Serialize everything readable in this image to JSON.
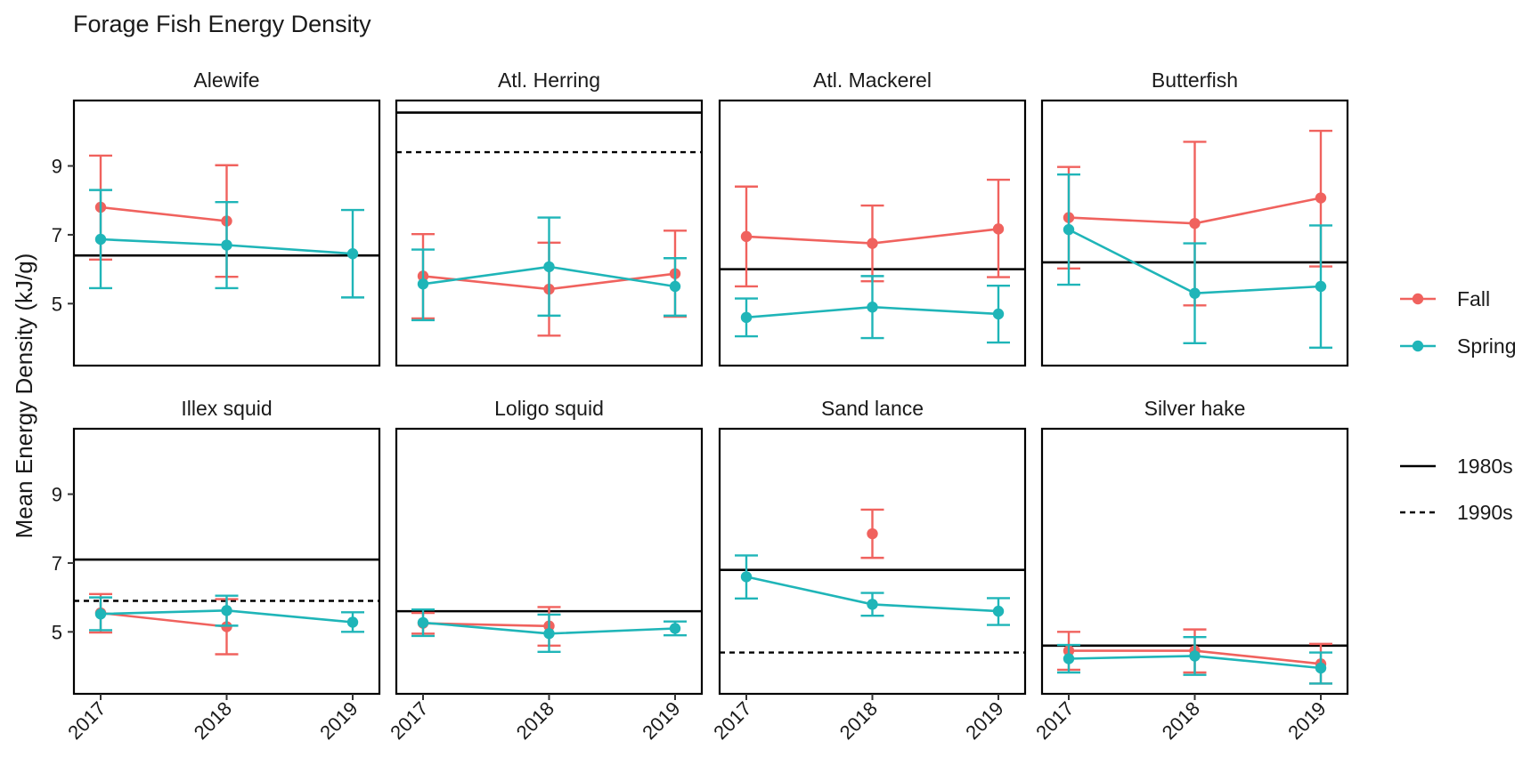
{
  "chart_data": {
    "type": "line",
    "title": "Forage Fish Energy Density",
    "xlabel": "",
    "ylabel": "Mean Energy Density (kJ/g)",
    "x": [
      "2017",
      "2018",
      "2019"
    ],
    "y_ticks": [
      5,
      7,
      9
    ],
    "ylim": [
      3.2,
      10.9
    ],
    "grid": false,
    "legend_position": "right",
    "series_legend": [
      {
        "name": "Fall",
        "color": "#F0625E"
      },
      {
        "name": "Spring",
        "color": "#1FB5B8"
      }
    ],
    "reference_legend": [
      {
        "name": "1980s",
        "style": "solid"
      },
      {
        "name": "1990s",
        "style": "dashed"
      }
    ],
    "panels": [
      {
        "name": "Alewife",
        "ref_1980s": 6.4,
        "ref_1990s": null,
        "series": [
          {
            "name": "Fall",
            "points": [
              {
                "x": "2017",
                "y": 7.8,
                "lo": 6.28,
                "hi": 9.3
              },
              {
                "x": "2018",
                "y": 7.4,
                "lo": 5.78,
                "hi": 9.02
              }
            ]
          },
          {
            "name": "Spring",
            "points": [
              {
                "x": "2017",
                "y": 6.87,
                "lo": 5.45,
                "hi": 8.3
              },
              {
                "x": "2018",
                "y": 6.7,
                "lo": 5.45,
                "hi": 7.95
              },
              {
                "x": "2019",
                "y": 6.45,
                "lo": 5.18,
                "hi": 7.72
              }
            ]
          }
        ]
      },
      {
        "name": "Atl. Herring",
        "ref_1980s": 10.55,
        "ref_1990s": 9.4,
        "series": [
          {
            "name": "Fall",
            "points": [
              {
                "x": "2017",
                "y": 5.8,
                "lo": 4.57,
                "hi": 7.02
              },
              {
                "x": "2018",
                "y": 5.42,
                "lo": 4.07,
                "hi": 6.77
              },
              {
                "x": "2019",
                "y": 5.87,
                "lo": 4.62,
                "hi": 7.12
              }
            ]
          },
          {
            "name": "Spring",
            "points": [
              {
                "x": "2017",
                "y": 5.57,
                "lo": 4.52,
                "hi": 6.57
              },
              {
                "x": "2018",
                "y": 6.07,
                "lo": 4.65,
                "hi": 7.5
              },
              {
                "x": "2019",
                "y": 5.5,
                "lo": 4.65,
                "hi": 6.32
              }
            ]
          }
        ]
      },
      {
        "name": "Atl. Mackerel",
        "ref_1980s": 6.0,
        "ref_1990s": null,
        "series": [
          {
            "name": "Fall",
            "points": [
              {
                "x": "2017",
                "y": 6.95,
                "lo": 5.5,
                "hi": 8.4
              },
              {
                "x": "2018",
                "y": 6.75,
                "lo": 5.65,
                "hi": 7.85
              },
              {
                "x": "2019",
                "y": 7.17,
                "lo": 5.77,
                "hi": 8.6
              }
            ]
          },
          {
            "name": "Spring",
            "points": [
              {
                "x": "2017",
                "y": 4.6,
                "lo": 4.05,
                "hi": 5.15
              },
              {
                "x": "2018",
                "y": 4.9,
                "lo": 4.0,
                "hi": 5.8
              },
              {
                "x": "2019",
                "y": 4.7,
                "lo": 3.87,
                "hi": 5.52
              }
            ]
          }
        ]
      },
      {
        "name": "Butterfish",
        "ref_1980s": 6.2,
        "ref_1990s": null,
        "series": [
          {
            "name": "Fall",
            "points": [
              {
                "x": "2017",
                "y": 7.5,
                "lo": 6.02,
                "hi": 8.97
              },
              {
                "x": "2018",
                "y": 7.33,
                "lo": 4.95,
                "hi": 9.7
              },
              {
                "x": "2019",
                "y": 8.07,
                "lo": 6.08,
                "hi": 10.02
              }
            ]
          },
          {
            "name": "Spring",
            "points": [
              {
                "x": "2017",
                "y": 7.15,
                "lo": 5.55,
                "hi": 8.75
              },
              {
                "x": "2018",
                "y": 5.3,
                "lo": 3.85,
                "hi": 6.75
              },
              {
                "x": "2019",
                "y": 5.5,
                "lo": 3.72,
                "hi": 7.27
              }
            ]
          }
        ]
      },
      {
        "name": "Illex squid",
        "ref_1980s": 7.1,
        "ref_1990s": 5.9,
        "series": [
          {
            "name": "Fall",
            "points": [
              {
                "x": "2017",
                "y": 5.55,
                "lo": 4.98,
                "hi": 6.1
              },
              {
                "x": "2018",
                "y": 5.15,
                "lo": 4.35,
                "hi": 5.95
              }
            ]
          },
          {
            "name": "Spring",
            "points": [
              {
                "x": "2017",
                "y": 5.52,
                "lo": 5.05,
                "hi": 6.0
              },
              {
                "x": "2018",
                "y": 5.62,
                "lo": 5.18,
                "hi": 6.05
              },
              {
                "x": "2019",
                "y": 5.28,
                "lo": 5.0,
                "hi": 5.57
              }
            ]
          }
        ]
      },
      {
        "name": "Loligo squid",
        "ref_1980s": 5.6,
        "ref_1990s": null,
        "series": [
          {
            "name": "Fall",
            "points": [
              {
                "x": "2017",
                "y": 5.25,
                "lo": 4.95,
                "hi": 5.55
              },
              {
                "x": "2018",
                "y": 5.17,
                "lo": 4.6,
                "hi": 5.72
              }
            ]
          },
          {
            "name": "Spring",
            "points": [
              {
                "x": "2017",
                "y": 5.27,
                "lo": 4.88,
                "hi": 5.65
              },
              {
                "x": "2018",
                "y": 4.95,
                "lo": 4.42,
                "hi": 5.5
              },
              {
                "x": "2019",
                "y": 5.1,
                "lo": 4.9,
                "hi": 5.3
              }
            ]
          }
        ]
      },
      {
        "name": "Sand lance",
        "ref_1980s": 6.8,
        "ref_1990s": 4.4,
        "series": [
          {
            "name": "Fall",
            "points": [
              {
                "x": "2018",
                "y": 7.85,
                "lo": 7.15,
                "hi": 8.55
              }
            ]
          },
          {
            "name": "Spring",
            "points": [
              {
                "x": "2017",
                "y": 6.6,
                "lo": 5.97,
                "hi": 7.22
              },
              {
                "x": "2018",
                "y": 5.8,
                "lo": 5.47,
                "hi": 6.13
              },
              {
                "x": "2019",
                "y": 5.6,
                "lo": 5.2,
                "hi": 5.98
              }
            ]
          }
        ]
      },
      {
        "name": "Silver hake",
        "ref_1980s": 4.6,
        "ref_1990s": null,
        "series": [
          {
            "name": "Fall",
            "points": [
              {
                "x": "2017",
                "y": 4.45,
                "lo": 3.9,
                "hi": 5.0
              },
              {
                "x": "2018",
                "y": 4.45,
                "lo": 3.82,
                "hi": 5.07
              },
              {
                "x": "2019",
                "y": 4.07,
                "lo": 3.5,
                "hi": 4.65
              }
            ]
          },
          {
            "name": "Spring",
            "points": [
              {
                "x": "2017",
                "y": 4.22,
                "lo": 3.82,
                "hi": 4.62
              },
              {
                "x": "2018",
                "y": 4.3,
                "lo": 3.75,
                "hi": 4.85
              },
              {
                "x": "2019",
                "y": 3.95,
                "lo": 3.5,
                "hi": 4.4
              }
            ]
          }
        ]
      }
    ]
  }
}
